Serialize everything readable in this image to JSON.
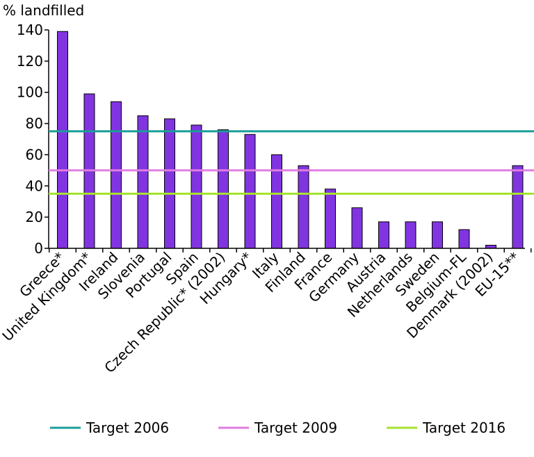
{
  "chart_data": {
    "type": "bar",
    "title": "",
    "ylabel": "% landfilled",
    "xlabel": "",
    "ylim": [
      0,
      140
    ],
    "yticks": [
      0,
      20,
      40,
      60,
      80,
      100,
      120,
      140
    ],
    "categories": [
      "Greece*",
      "United Kingdom*",
      "Ireland",
      "Slovenia",
      "Portugal",
      "Spain",
      "Czech Republic* (2002)",
      "Hungary*",
      "Italy",
      "Finland",
      "France",
      "Germany",
      "Austria",
      "Netherlands",
      "Sweden",
      "Belgium-FL",
      "Denmark (2002)",
      "EU-15**"
    ],
    "values": [
      139,
      99,
      94,
      85,
      83,
      79,
      76,
      73,
      60,
      53,
      38,
      26,
      17,
      17,
      17,
      12,
      2,
      53
    ],
    "bar_color": "#8135e0",
    "reference_lines": [
      {
        "name": "Target 2006",
        "value": 75,
        "color": "#1a9e99"
      },
      {
        "name": "Target 2009",
        "value": 50,
        "color": "#e07ee0"
      },
      {
        "name": "Target 2016",
        "value": 35,
        "color": "#a6e22e"
      }
    ],
    "legend_position": "bottom",
    "grid": false
  }
}
